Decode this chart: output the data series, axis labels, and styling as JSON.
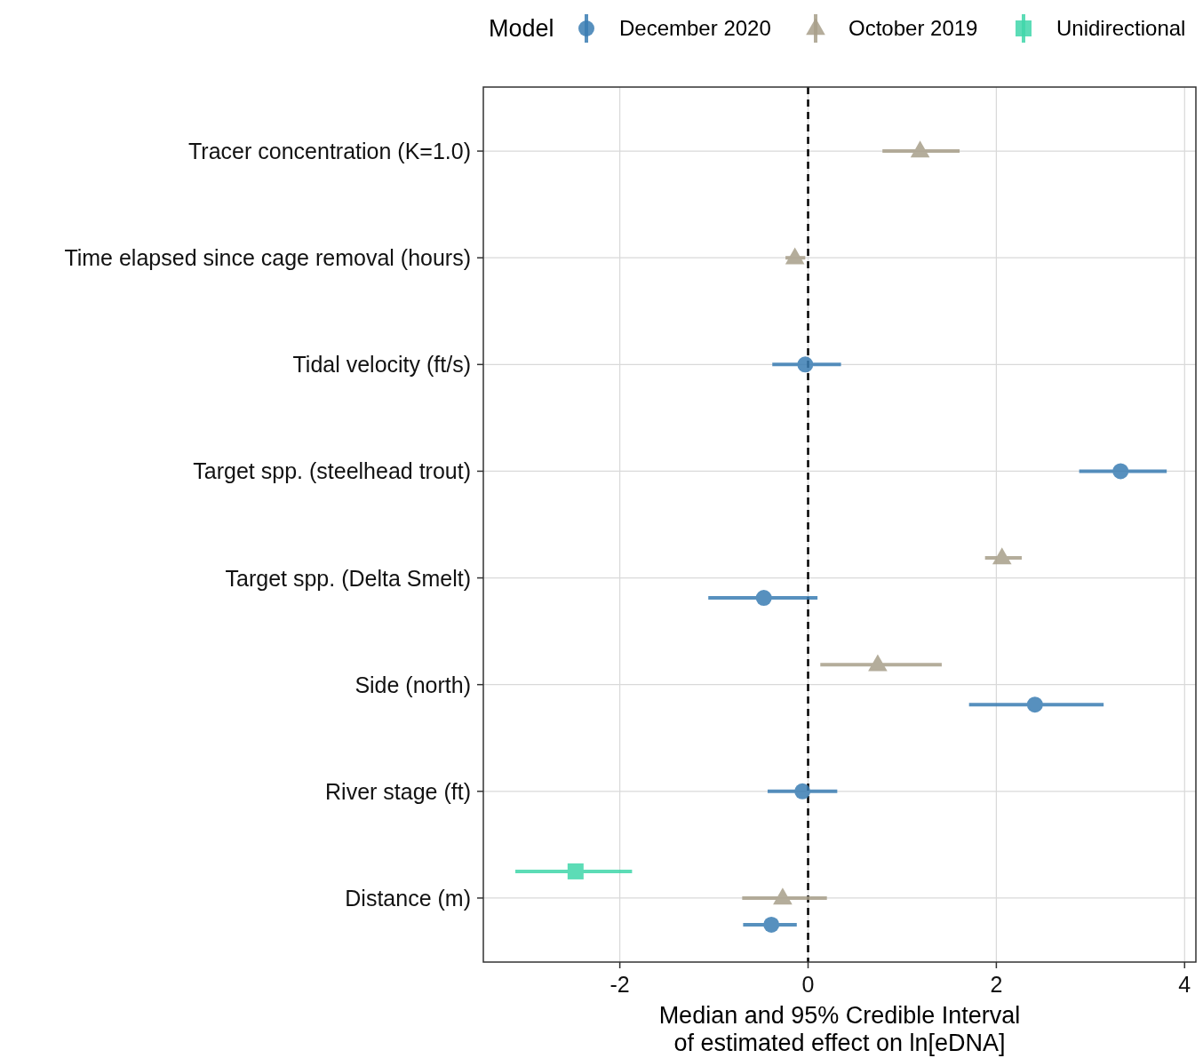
{
  "chart_data": {
    "type": "scatter",
    "orientation": "horizontal",
    "xlabel": "Median and 95% Credible Interval\nof estimated effect on ln[eDNA]",
    "legend_title": "Model",
    "legend": "top",
    "grid": true,
    "categories": [
      "Tracer concentration (K=1.0)",
      "Time elapsed since cage removal (hours)",
      "Tidal velocity (ft/s)",
      "Target spp. (steelhead trout)",
      "Target spp. (Delta Smelt)",
      "Side (north)",
      "River stage (ft)",
      "Distance (m)"
    ],
    "xlim": [
      -3.45,
      4.12
    ],
    "xticks": [
      -2,
      0,
      2,
      4
    ],
    "ref_lines": [
      {
        "axis": "x",
        "value": 0,
        "color": "#000000",
        "line_style": "dashed"
      }
    ],
    "series": [
      {
        "name": "December 2020",
        "color": "#3a7db3",
        "marker": "circle",
        "values": [
          null,
          null,
          -0.03,
          3.32,
          -0.47,
          2.41,
          -0.06,
          -0.39
        ],
        "errors": [
          null,
          null,
          [
            -0.38,
            0.35
          ],
          [
            2.88,
            3.81
          ],
          [
            -1.06,
            0.1
          ],
          [
            1.71,
            3.14
          ],
          [
            -0.43,
            0.31
          ],
          [
            -0.69,
            -0.12
          ]
        ]
      },
      {
        "name": "October 2019",
        "color": "#a89f8a",
        "marker": "triangle",
        "values": [
          1.19,
          -0.14,
          null,
          null,
          2.06,
          0.74,
          null,
          -0.27
        ],
        "errors": [
          [
            0.79,
            1.61
          ],
          [
            -0.24,
            -0.03
          ],
          null,
          null,
          [
            1.88,
            2.27
          ],
          [
            0.13,
            1.42
          ],
          null,
          [
            -0.7,
            0.2
          ]
        ]
      },
      {
        "name": "Unidirectional",
        "color": "#40d6aa",
        "marker": "square",
        "values": [
          null,
          null,
          null,
          null,
          null,
          null,
          null,
          -2.47
        ],
        "errors": [
          null,
          null,
          null,
          null,
          null,
          null,
          null,
          [
            -3.11,
            -1.87
          ]
        ]
      }
    ]
  }
}
